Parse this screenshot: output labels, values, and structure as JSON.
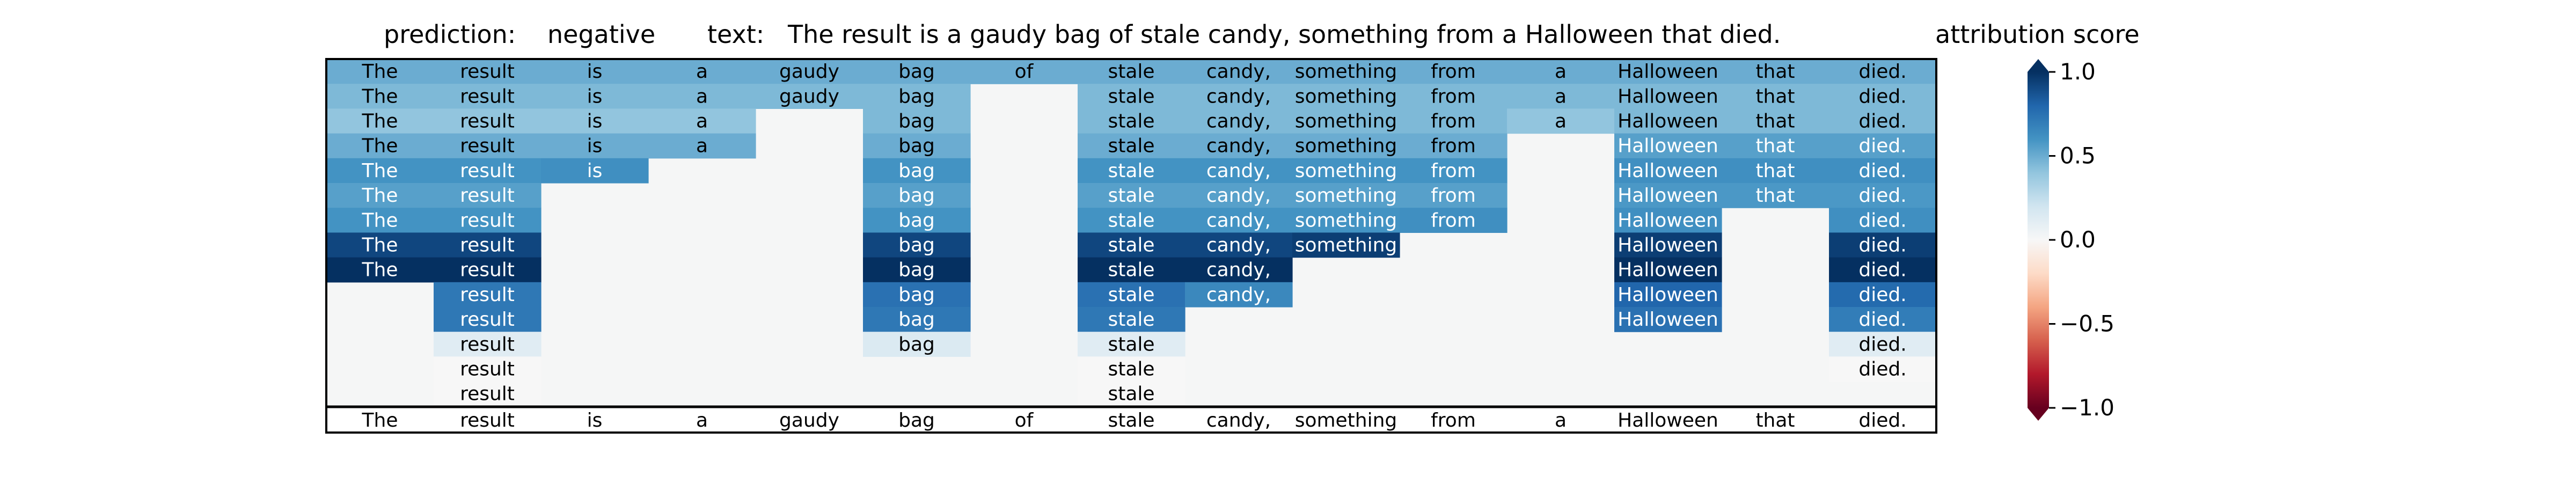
{
  "header": {
    "prediction_label": "prediction:",
    "prediction_value": "negative",
    "text_label": "text:",
    "text_value": "The result is a gaudy bag of stale candy, something from a Halloween that died.",
    "colorbar_title": "attribution score"
  },
  "chart_data": {
    "type": "heatmap",
    "tokens": [
      "The",
      "result",
      "is",
      "a",
      "gaudy",
      "bag",
      "of",
      "stale",
      "candy,",
      "something",
      "from",
      "a",
      "Halloween",
      "that",
      "died."
    ],
    "rows": [
      [
        0.5,
        0.5,
        0.5,
        0.5,
        0.5,
        0.5,
        0.5,
        0.5,
        0.5,
        0.5,
        0.5,
        0.5,
        0.5,
        0.5,
        0.5
      ],
      [
        0.45,
        0.45,
        0.45,
        0.45,
        0.45,
        0.45,
        null,
        0.45,
        0.45,
        0.45,
        0.45,
        0.45,
        0.45,
        0.45,
        0.45
      ],
      [
        0.4,
        0.4,
        0.4,
        0.4,
        null,
        0.45,
        null,
        0.45,
        0.45,
        0.45,
        0.45,
        0.4,
        0.45,
        0.45,
        0.45
      ],
      [
        0.5,
        0.5,
        0.5,
        0.5,
        null,
        0.5,
        null,
        0.5,
        0.5,
        0.5,
        0.5,
        null,
        0.55,
        0.55,
        0.55
      ],
      [
        0.6,
        0.6,
        0.62,
        null,
        null,
        0.6,
        null,
        0.6,
        0.6,
        0.6,
        0.6,
        null,
        0.62,
        0.62,
        0.62
      ],
      [
        0.55,
        0.55,
        null,
        null,
        null,
        0.55,
        null,
        0.55,
        0.55,
        0.55,
        0.55,
        null,
        0.58,
        0.58,
        0.58
      ],
      [
        0.6,
        0.6,
        null,
        null,
        null,
        0.6,
        null,
        0.6,
        0.6,
        0.6,
        0.62,
        null,
        0.62,
        null,
        0.62
      ],
      [
        0.92,
        0.92,
        null,
        null,
        null,
        0.92,
        null,
        0.92,
        0.92,
        0.95,
        null,
        null,
        0.95,
        null,
        0.95
      ],
      [
        1.0,
        1.0,
        null,
        null,
        null,
        1.0,
        null,
        1.0,
        1.0,
        null,
        null,
        null,
        1.0,
        null,
        1.0
      ],
      [
        null,
        0.72,
        null,
        null,
        null,
        0.75,
        null,
        0.75,
        0.65,
        null,
        null,
        null,
        0.8,
        null,
        0.78
      ],
      [
        null,
        0.72,
        null,
        null,
        null,
        0.72,
        null,
        0.72,
        null,
        null,
        null,
        null,
        0.75,
        null,
        0.7
      ],
      [
        null,
        0.12,
        null,
        null,
        null,
        0.15,
        null,
        0.12,
        null,
        null,
        null,
        null,
        null,
        null,
        0.12
      ],
      [
        null,
        0.0,
        null,
        null,
        null,
        null,
        null,
        0.0,
        null,
        null,
        null,
        null,
        null,
        null,
        0.0
      ],
      [
        null,
        0.0,
        null,
        null,
        null,
        null,
        null,
        0.0,
        null,
        null,
        null,
        null,
        null,
        null,
        null
      ]
    ],
    "colorbar": {
      "range": [
        -1.0,
        1.0
      ],
      "ticks": [
        1.0,
        0.5,
        0.0,
        -0.5,
        -1.0
      ],
      "tick_labels": [
        "1.0",
        "0.5",
        "0.0",
        "−0.5",
        "−1.0"
      ],
      "colormap": "RdBu"
    }
  }
}
